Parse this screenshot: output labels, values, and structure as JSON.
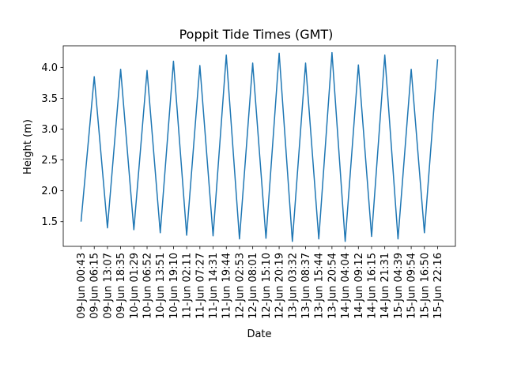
{
  "chart_data": {
    "type": "line",
    "title": "Poppit Tide Times (GMT)",
    "xlabel": "Date",
    "ylabel": "Height (m)",
    "ylim": [
      1.1,
      4.35
    ],
    "yticks": [
      1.5,
      2.0,
      2.5,
      3.0,
      3.5,
      4.0
    ],
    "ytick_labels": [
      "1.5",
      "2.0",
      "2.5",
      "3.0",
      "3.5",
      "4.0"
    ],
    "grid": false,
    "legend": "none",
    "line_color": "#1f77b4",
    "x": [
      "09-Jun 00:43",
      "09-Jun 06:15",
      "09-Jun 13:07",
      "09-Jun 18:35",
      "10-Jun 01:29",
      "10-Jun 06:52",
      "10-Jun 13:51",
      "10-Jun 19:10",
      "11-Jun 02:11",
      "11-Jun 07:27",
      "11-Jun 14:31",
      "11-Jun 19:44",
      "12-Jun 02:53",
      "12-Jun 08:01",
      "12-Jun 15:10",
      "12-Jun 20:19",
      "13-Jun 03:32",
      "13-Jun 08:37",
      "13-Jun 15:44",
      "13-Jun 20:54",
      "14-Jun 04:04",
      "14-Jun 09:12",
      "14-Jun 16:15",
      "14-Jun 21:31",
      "15-Jun 04:39",
      "15-Jun 09:54",
      "15-Jun 16:50",
      "15-Jun 22:16"
    ],
    "series": [
      {
        "values": [
          1.5,
          3.85,
          1.4,
          3.97,
          1.37,
          3.95,
          1.32,
          4.1,
          1.28,
          4.03,
          1.27,
          4.2,
          1.22,
          4.07,
          1.23,
          4.23,
          1.18,
          4.07,
          1.22,
          4.24,
          1.18,
          4.04,
          1.26,
          4.2,
          1.22,
          3.97,
          1.32,
          4.13
        ]
      }
    ]
  }
}
